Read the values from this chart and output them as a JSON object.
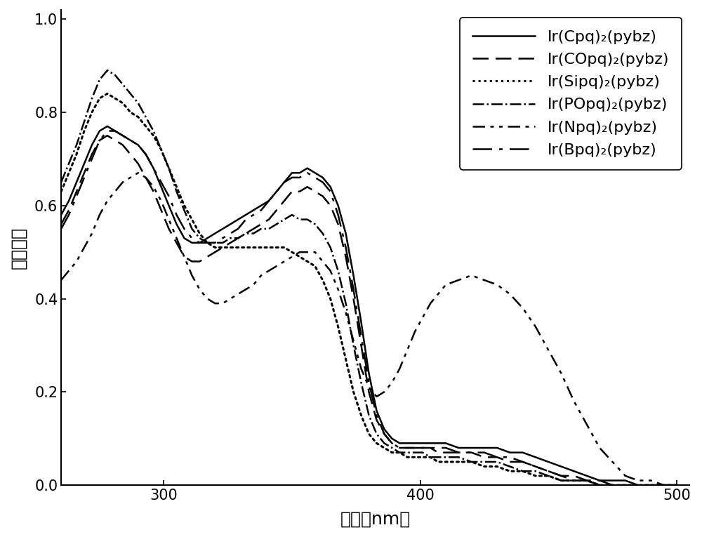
{
  "title": "",
  "xlabel": "波长（nm）",
  "ylabel": "发射强度",
  "xlim": [
    260,
    505
  ],
  "ylim": [
    0.0,
    1.02
  ],
  "xticks": [
    300,
    400,
    500
  ],
  "yticks": [
    0.0,
    0.2,
    0.4,
    0.6,
    0.8,
    1.0
  ],
  "background_color": "#ffffff",
  "line_color": "#000000",
  "series": [
    {
      "label": "Ir(Cpq)₂(pybz)",
      "linestyle": "solid",
      "linewidth": 1.8,
      "x": [
        260,
        263,
        266,
        269,
        272,
        275,
        278,
        281,
        284,
        287,
        290,
        293,
        296,
        299,
        302,
        305,
        308,
        311,
        314,
        317,
        320,
        323,
        326,
        329,
        332,
        335,
        338,
        341,
        344,
        347,
        350,
        353,
        356,
        359,
        362,
        365,
        368,
        371,
        374,
        377,
        380,
        383,
        386,
        389,
        392,
        395,
        398,
        401,
        404,
        407,
        410,
        415,
        420,
        425,
        430,
        435,
        440,
        445,
        450,
        455,
        460,
        465,
        470,
        475,
        480,
        485,
        490,
        495,
        500
      ],
      "y": [
        0.58,
        0.61,
        0.65,
        0.69,
        0.73,
        0.76,
        0.77,
        0.76,
        0.75,
        0.74,
        0.73,
        0.71,
        0.68,
        0.64,
        0.6,
        0.56,
        0.53,
        0.52,
        0.52,
        0.53,
        0.54,
        0.55,
        0.56,
        0.57,
        0.58,
        0.59,
        0.6,
        0.61,
        0.63,
        0.65,
        0.67,
        0.67,
        0.68,
        0.67,
        0.66,
        0.64,
        0.6,
        0.54,
        0.45,
        0.35,
        0.24,
        0.16,
        0.12,
        0.1,
        0.09,
        0.09,
        0.09,
        0.09,
        0.09,
        0.09,
        0.09,
        0.08,
        0.08,
        0.08,
        0.08,
        0.07,
        0.07,
        0.06,
        0.05,
        0.04,
        0.03,
        0.02,
        0.01,
        0.01,
        0.01,
        0.0,
        0.0,
        0.0,
        0.0
      ]
    },
    {
      "label": "Ir(COpq)₂(pybz)",
      "linestyle": "dashed",
      "linewidth": 1.8,
      "dashes": [
        9,
        4
      ],
      "x": [
        260,
        263,
        266,
        269,
        272,
        275,
        278,
        281,
        284,
        287,
        290,
        293,
        296,
        299,
        302,
        305,
        308,
        311,
        314,
        317,
        320,
        323,
        326,
        329,
        332,
        335,
        338,
        341,
        344,
        347,
        350,
        353,
        356,
        359,
        362,
        365,
        368,
        371,
        374,
        377,
        380,
        383,
        386,
        389,
        392,
        395,
        398,
        401,
        404,
        407,
        410,
        415,
        420,
        425,
        430,
        435,
        440,
        445,
        450,
        455,
        460,
        465,
        470,
        475,
        480,
        485,
        490,
        495,
        500
      ],
      "y": [
        0.56,
        0.59,
        0.63,
        0.67,
        0.71,
        0.74,
        0.75,
        0.74,
        0.73,
        0.71,
        0.69,
        0.66,
        0.63,
        0.59,
        0.55,
        0.52,
        0.49,
        0.48,
        0.48,
        0.49,
        0.5,
        0.51,
        0.52,
        0.53,
        0.54,
        0.55,
        0.56,
        0.57,
        0.59,
        0.61,
        0.63,
        0.63,
        0.64,
        0.63,
        0.62,
        0.6,
        0.56,
        0.49,
        0.4,
        0.3,
        0.2,
        0.14,
        0.11,
        0.09,
        0.08,
        0.08,
        0.08,
        0.08,
        0.08,
        0.07,
        0.07,
        0.07,
        0.07,
        0.06,
        0.06,
        0.05,
        0.05,
        0.04,
        0.03,
        0.02,
        0.02,
        0.01,
        0.01,
        0.0,
        0.0,
        0.0,
        0.0,
        0.0,
        0.0
      ]
    },
    {
      "label": "Ir(Sipq)₂(pybz)",
      "linestyle": "dotted",
      "linewidth": 2.2,
      "x": [
        260,
        263,
        266,
        269,
        272,
        275,
        278,
        281,
        284,
        287,
        290,
        293,
        296,
        299,
        302,
        305,
        308,
        311,
        314,
        317,
        320,
        323,
        326,
        329,
        332,
        335,
        338,
        341,
        344,
        347,
        350,
        353,
        356,
        359,
        362,
        365,
        368,
        371,
        374,
        377,
        380,
        383,
        386,
        389,
        392,
        395,
        398,
        401,
        404,
        407,
        410,
        415,
        420,
        425,
        430,
        435,
        440,
        445,
        450,
        455,
        460,
        465,
        470,
        475,
        480,
        485,
        490,
        495,
        500
      ],
      "y": [
        0.63,
        0.67,
        0.71,
        0.76,
        0.8,
        0.83,
        0.84,
        0.83,
        0.82,
        0.8,
        0.79,
        0.77,
        0.75,
        0.72,
        0.68,
        0.64,
        0.6,
        0.57,
        0.54,
        0.52,
        0.51,
        0.51,
        0.51,
        0.51,
        0.51,
        0.51,
        0.51,
        0.51,
        0.51,
        0.51,
        0.5,
        0.49,
        0.48,
        0.47,
        0.44,
        0.4,
        0.34,
        0.27,
        0.2,
        0.15,
        0.11,
        0.09,
        0.08,
        0.07,
        0.07,
        0.06,
        0.06,
        0.06,
        0.06,
        0.05,
        0.05,
        0.05,
        0.05,
        0.04,
        0.04,
        0.03,
        0.03,
        0.02,
        0.02,
        0.01,
        0.01,
        0.01,
        0.0,
        0.0,
        0.0,
        0.0,
        0.0,
        0.0,
        0.0
      ]
    },
    {
      "label": "Ir(POpq)₂(pybz)",
      "linestyle": "dashdot",
      "linewidth": 1.8,
      "x": [
        260,
        263,
        266,
        269,
        272,
        275,
        278,
        281,
        284,
        287,
        290,
        293,
        296,
        299,
        302,
        305,
        308,
        311,
        314,
        317,
        320,
        323,
        326,
        329,
        332,
        335,
        338,
        341,
        344,
        347,
        350,
        353,
        356,
        359,
        362,
        365,
        368,
        371,
        374,
        377,
        380,
        383,
        386,
        389,
        392,
        395,
        398,
        401,
        404,
        407,
        410,
        415,
        420,
        425,
        430,
        435,
        440,
        445,
        450,
        455,
        460,
        465,
        470,
        475,
        480,
        485,
        490,
        495,
        500
      ],
      "y": [
        0.65,
        0.69,
        0.73,
        0.78,
        0.83,
        0.87,
        0.89,
        0.88,
        0.86,
        0.84,
        0.82,
        0.79,
        0.76,
        0.72,
        0.68,
        0.63,
        0.59,
        0.55,
        0.53,
        0.52,
        0.52,
        0.52,
        0.53,
        0.53,
        0.54,
        0.54,
        0.55,
        0.55,
        0.56,
        0.57,
        0.58,
        0.57,
        0.57,
        0.56,
        0.54,
        0.51,
        0.46,
        0.39,
        0.3,
        0.22,
        0.15,
        0.11,
        0.09,
        0.08,
        0.07,
        0.07,
        0.07,
        0.07,
        0.06,
        0.06,
        0.06,
        0.06,
        0.05,
        0.05,
        0.05,
        0.04,
        0.03,
        0.03,
        0.02,
        0.01,
        0.01,
        0.01,
        0.0,
        0.0,
        0.0,
        0.0,
        0.0,
        0.0,
        0.0
      ]
    },
    {
      "label": "Ir(Npq)₂(pybz)",
      "linestyle": "custom_dashdotdot",
      "linewidth": 1.8,
      "dashes": [
        7,
        3,
        2,
        3,
        2,
        3
      ],
      "x": [
        260,
        263,
        266,
        269,
        272,
        275,
        278,
        281,
        284,
        287,
        290,
        293,
        296,
        299,
        302,
        305,
        308,
        311,
        314,
        317,
        320,
        323,
        326,
        329,
        332,
        335,
        338,
        341,
        344,
        347,
        350,
        353,
        356,
        359,
        362,
        365,
        368,
        371,
        374,
        377,
        380,
        383,
        386,
        389,
        392,
        395,
        398,
        401,
        404,
        407,
        410,
        415,
        420,
        425,
        430,
        435,
        440,
        445,
        450,
        455,
        460,
        465,
        470,
        475,
        480,
        485,
        490,
        495,
        500
      ],
      "y": [
        0.44,
        0.46,
        0.48,
        0.51,
        0.54,
        0.58,
        0.61,
        0.63,
        0.65,
        0.66,
        0.67,
        0.66,
        0.64,
        0.61,
        0.57,
        0.53,
        0.49,
        0.45,
        0.42,
        0.4,
        0.39,
        0.39,
        0.4,
        0.41,
        0.42,
        0.43,
        0.45,
        0.46,
        0.47,
        0.48,
        0.49,
        0.5,
        0.5,
        0.5,
        0.48,
        0.46,
        0.42,
        0.37,
        0.31,
        0.25,
        0.21,
        0.19,
        0.2,
        0.22,
        0.25,
        0.29,
        0.33,
        0.36,
        0.39,
        0.41,
        0.43,
        0.44,
        0.45,
        0.44,
        0.43,
        0.41,
        0.38,
        0.34,
        0.29,
        0.24,
        0.18,
        0.13,
        0.08,
        0.05,
        0.02,
        0.01,
        0.01,
        0.0,
        0.0
      ]
    },
    {
      "label": "Ir(Bpq)₂(pybz)",
      "linestyle": "custom_longdash",
      "linewidth": 1.8,
      "dashes": [
        11,
        4,
        2,
        4
      ],
      "x": [
        260,
        263,
        266,
        269,
        272,
        275,
        278,
        281,
        284,
        287,
        290,
        293,
        296,
        299,
        302,
        305,
        308,
        311,
        314,
        317,
        320,
        323,
        326,
        329,
        332,
        335,
        338,
        341,
        344,
        347,
        350,
        353,
        356,
        359,
        362,
        365,
        368,
        371,
        374,
        377,
        380,
        383,
        386,
        389,
        392,
        395,
        398,
        401,
        404,
        407,
        410,
        415,
        420,
        425,
        430,
        435,
        440,
        445,
        450,
        455,
        460,
        465,
        470,
        475,
        480,
        485,
        490,
        495,
        500
      ],
      "y": [
        0.55,
        0.58,
        0.62,
        0.66,
        0.7,
        0.74,
        0.76,
        0.76,
        0.75,
        0.74,
        0.73,
        0.71,
        0.68,
        0.65,
        0.62,
        0.58,
        0.55,
        0.53,
        0.52,
        0.52,
        0.52,
        0.53,
        0.54,
        0.55,
        0.57,
        0.58,
        0.59,
        0.61,
        0.63,
        0.65,
        0.66,
        0.66,
        0.67,
        0.66,
        0.65,
        0.63,
        0.58,
        0.51,
        0.42,
        0.32,
        0.22,
        0.15,
        0.11,
        0.09,
        0.08,
        0.08,
        0.08,
        0.08,
        0.08,
        0.08,
        0.08,
        0.07,
        0.07,
        0.07,
        0.06,
        0.06,
        0.05,
        0.04,
        0.03,
        0.02,
        0.01,
        0.01,
        0.0,
        0.0,
        0.0,
        0.0,
        0.0,
        0.0,
        0.0
      ]
    }
  ],
  "legend_linestyles": [
    {
      "ls": "-",
      "dashes": null
    },
    {
      "ls": "--",
      "dashes": [
        9,
        4
      ]
    },
    {
      "ls": ":",
      "dashes": null
    },
    {
      "ls": "-.",
      "dashes": null
    },
    {
      "ls": "-",
      "dashes": [
        7,
        3,
        2,
        3,
        2,
        3
      ]
    },
    {
      "ls": "-",
      "dashes": [
        11,
        4,
        2,
        4
      ]
    }
  ]
}
